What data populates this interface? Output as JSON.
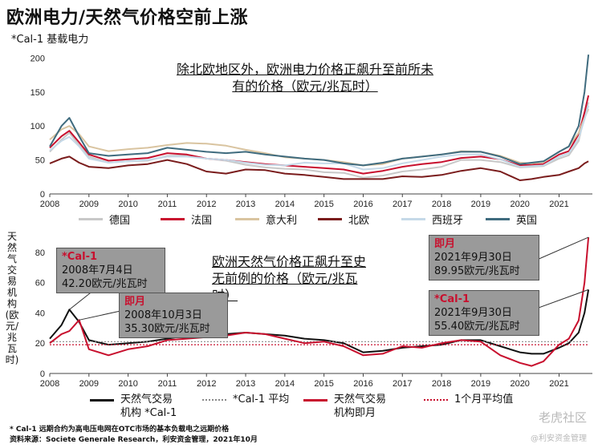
{
  "title": "欧洲电力/天然气价格空前上涨",
  "subtitle": "*Cal-1 基载电力",
  "chart_data": [
    {
      "type": "line",
      "x_ticks": [
        "2008",
        "2009",
        "2010",
        "2011",
        "2012",
        "2013",
        "2014",
        "2015",
        "2016",
        "2017",
        "2018",
        "2019",
        "2020",
        "2021"
      ],
      "y_ticks": [
        "0",
        "50",
        "100",
        "150",
        "200"
      ],
      "ylim": [
        0,
        210
      ],
      "grid": false,
      "legend_position": "bottom",
      "annotation": [
        "除北欧地区外，欧洲电力价格正飙升至前所未",
        "有的价格（欧元/兆瓦时）"
      ],
      "x": [
        2008.0,
        2008.3,
        2008.5,
        2008.75,
        2009.0,
        2009.5,
        2010.0,
        2010.5,
        2011.0,
        2011.5,
        2012.0,
        2012.5,
        2013.0,
        2013.5,
        2014.0,
        2014.5,
        2015.0,
        2015.5,
        2016.0,
        2016.5,
        2017.0,
        2017.5,
        2018.0,
        2018.5,
        2019.0,
        2019.5,
        2020.0,
        2020.3,
        2020.6,
        2021.0,
        2021.25,
        2021.5,
        2021.65,
        2021.75
      ],
      "series": [
        {
          "name": "德国",
          "color": "#c8c8c8",
          "values": [
            62,
            80,
            90,
            72,
            55,
            46,
            48,
            49,
            56,
            57,
            52,
            49,
            43,
            39,
            37,
            36,
            32,
            31,
            24,
            27,
            33,
            36,
            40,
            50,
            50,
            47,
            39,
            40,
            41,
            52,
            57,
            78,
            115,
            135
          ]
        },
        {
          "name": "法国",
          "color": "#c8102e",
          "values": [
            68,
            85,
            93,
            76,
            58,
            49,
            51,
            53,
            60,
            58,
            52,
            50,
            47,
            44,
            42,
            40,
            38,
            36,
            30,
            34,
            40,
            44,
            47,
            53,
            55,
            51,
            42,
            43,
            44,
            58,
            63,
            88,
            120,
            145
          ]
        },
        {
          "name": "意大利",
          "color": "#d9c4a0",
          "values": [
            80,
            95,
            100,
            88,
            70,
            63,
            66,
            68,
            72,
            75,
            74,
            71,
            65,
            60,
            54,
            52,
            50,
            47,
            42,
            44,
            52,
            55,
            58,
            63,
            62,
            56,
            46,
            45,
            47,
            62,
            70,
            90,
            112,
            125
          ]
        },
        {
          "name": "北欧",
          "color": "#7a1c1c",
          "values": [
            45,
            52,
            55,
            46,
            40,
            38,
            42,
            44,
            50,
            44,
            33,
            30,
            36,
            35,
            30,
            28,
            25,
            22,
            22,
            22,
            26,
            25,
            28,
            34,
            38,
            33,
            20,
            22,
            25,
            28,
            33,
            38,
            45,
            48
          ]
        },
        {
          "name": "西班牙",
          "color": "#c5d9e8",
          "values": [
            64,
            78,
            84,
            70,
            52,
            46,
            48,
            50,
            55,
            55,
            52,
            50,
            46,
            43,
            42,
            46,
            45,
            45,
            36,
            38,
            45,
            50,
            55,
            58,
            58,
            51,
            40,
            41,
            42,
            55,
            60,
            82,
            110,
            130
          ]
        },
        {
          "name": "英国",
          "color": "#3f6b7e",
          "values": [
            70,
            100,
            112,
            85,
            60,
            56,
            58,
            60,
            68,
            65,
            62,
            60,
            62,
            58,
            55,
            52,
            50,
            45,
            42,
            46,
            52,
            55,
            58,
            62,
            62,
            55,
            44,
            46,
            48,
            62,
            70,
            100,
            150,
            205
          ]
        }
      ]
    },
    {
      "type": "line",
      "ylabel": "天然气交易机构(欧元/兆瓦时)",
      "x_ticks": [
        "2008",
        "2009",
        "2010",
        "2011",
        "2012",
        "2013",
        "2014",
        "2015",
        "2016",
        "2017",
        "2018",
        "2019",
        "2020",
        "2021"
      ],
      "y_ticks": [
        "0",
        "20",
        "40",
        "60",
        "80"
      ],
      "ylim": [
        0,
        90
      ],
      "grid": false,
      "legend_position": "bottom",
      "annotation": [
        "欧洲天然气价格正飙升至史",
        "无前例的价格（欧元/兆瓦",
        "时）"
      ],
      "x": [
        2008.0,
        2008.3,
        2008.5,
        2008.75,
        2009.0,
        2009.5,
        2010.0,
        2010.5,
        2011.0,
        2011.5,
        2012.0,
        2012.5,
        2013.0,
        2013.5,
        2014.0,
        2014.5,
        2015.0,
        2015.5,
        2016.0,
        2016.5,
        2017.0,
        2017.5,
        2018.0,
        2018.5,
        2019.0,
        2019.5,
        2020.0,
        2020.3,
        2020.6,
        2021.0,
        2021.25,
        2021.5,
        2021.65,
        2021.75
      ],
      "series": [
        {
          "name": "天然气交易机构 *Cal-1",
          "color": "#111111",
          "style": "solid",
          "values": [
            23,
            32,
            42.2,
            34,
            22,
            19,
            20,
            21,
            23,
            25,
            26,
            26,
            27,
            26,
            25,
            23,
            22,
            20,
            14,
            15,
            17,
            18,
            19,
            22,
            22,
            18,
            14,
            13,
            13,
            17,
            20,
            27,
            40,
            55.4
          ]
        },
        {
          "name": "*Cal-1 平均",
          "color": "#888888",
          "style": "dotted",
          "values": [
            21,
            21,
            21,
            21,
            21,
            21,
            21,
            21,
            21,
            21,
            21,
            21,
            21,
            21,
            21,
            21,
            21,
            21,
            21,
            21,
            21,
            21,
            21,
            21,
            21,
            21,
            21,
            21,
            21,
            21,
            21,
            21,
            21,
            21
          ]
        },
        {
          "name": "天然气交易机构即月",
          "color": "#c8102e",
          "style": "solid",
          "values": [
            20,
            26,
            28,
            35.3,
            16,
            12,
            16,
            18,
            22,
            23,
            24,
            25,
            27,
            26,
            23,
            20,
            21,
            18,
            12,
            13,
            18,
            17,
            20,
            22,
            21,
            12,
            7,
            5,
            8,
            19,
            23,
            35,
            60,
            89.95
          ]
        },
        {
          "name": "1个月平均值",
          "color": "#c8102e",
          "style": "dotted",
          "values": [
            19,
            19,
            19,
            19,
            19,
            19,
            19,
            19,
            19,
            19,
            19,
            19,
            19,
            19,
            19,
            19,
            19,
            19,
            19,
            19,
            19,
            19,
            19,
            19,
            19,
            19,
            19,
            19,
            19,
            19,
            19,
            19,
            19,
            19
          ]
        }
      ],
      "callouts": [
        {
          "head": "*Cal-1",
          "date": "2008年7月4日",
          "value": "42.20欧元/兆瓦时"
        },
        {
          "head": "即月",
          "date": "2008年10月3日",
          "value": "35.30欧元/兆瓦时"
        },
        {
          "head": "即月",
          "date": "2021年9月30日",
          "value": "89.95欧元/兆瓦时"
        },
        {
          "head": "*Cal-1",
          "date": "2021年9月30日",
          "value": "55.40欧元/兆瓦时"
        }
      ]
    }
  ],
  "legend_top": [
    "德国",
    "法国",
    "意大利",
    "北欧",
    "西班牙",
    "英国"
  ],
  "legend_bottom": [
    {
      "line1": "天然气交易",
      "line2": "机构 *Cal-1"
    },
    {
      "line1": "*Cal-1 平均",
      "line2": ""
    },
    {
      "line1": "天然气交易",
      "line2": "机构即月"
    },
    {
      "line1": "1个月平均值",
      "line2": ""
    }
  ],
  "footnote": {
    "line1": "* Cal-1  远期合约为高电压电网在OTC市场的基本负载电之远期价格",
    "line2": "资料来源：Societe  Generale  Research，利安资金管理，2021年10月"
  },
  "watermark": {
    "main": "老虎社区",
    "sub": "@利安资金管理"
  }
}
